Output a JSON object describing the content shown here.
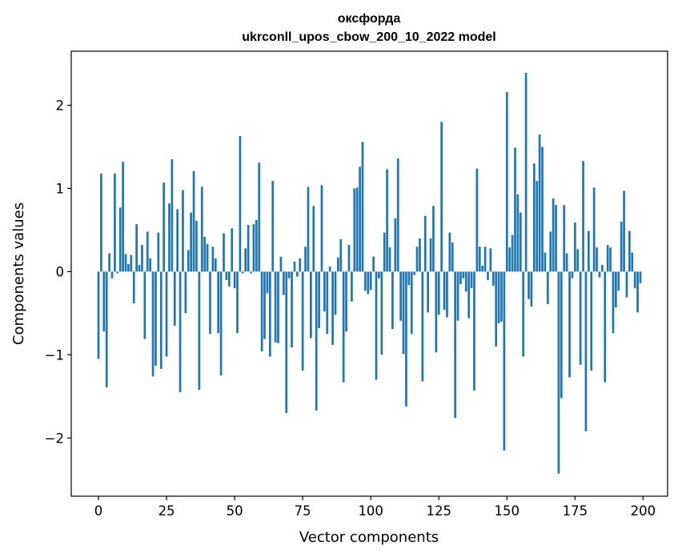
{
  "chart_data": {
    "type": "bar",
    "title_line1": "оксфорда",
    "title_line2": "ukrconll_upos_cbow_200_10_2022 model",
    "xlabel": "Vector components",
    "ylabel": "Components values",
    "xlim": [
      -10,
      209
    ],
    "ylim": [
      -2.7,
      2.65
    ],
    "xticks": [
      0,
      25,
      50,
      75,
      100,
      125,
      150,
      175,
      200
    ],
    "xtick_labels": [
      "0",
      "25",
      "50",
      "75",
      "100",
      "125",
      "150",
      "175",
      "200"
    ],
    "yticks": [
      -2,
      -1,
      0,
      1,
      2
    ],
    "ytick_labels": [
      "−2",
      "−1",
      "0",
      "1",
      "2"
    ],
    "grid": false,
    "bar_color": "#1f77b4",
    "values": [
      -1.05,
      1.18,
      -0.72,
      -1.39,
      0.22,
      -0.08,
      1.18,
      -0.02,
      0.77,
      1.32,
      0.21,
      0.09,
      0.2,
      -0.38,
      0.57,
      0.08,
      0.32,
      -0.81,
      0.48,
      0.16,
      -1.26,
      -1.13,
      0.47,
      -1.17,
      1.07,
      -1.02,
      0.82,
      1.35,
      -0.65,
      0.75,
      -1.45,
      0.98,
      -0.5,
      0.26,
      0.71,
      1.21,
      0.61,
      -1.42,
      1.02,
      0.42,
      0.33,
      -0.75,
      0.3,
      0.16,
      -0.74,
      -1.25,
      0.46,
      -0.1,
      -0.18,
      0.52,
      -0.2,
      -0.74,
      1.63,
      -0.02,
      0.28,
      0.56,
      -0.02,
      0.57,
      0.62,
      1.31,
      -0.96,
      -0.81,
      -0.26,
      -1.02,
      1.09,
      -0.85,
      -0.86,
      0.18,
      -0.28,
      -1.7,
      -0.08,
      -0.91,
      0.12,
      -0.06,
      0.16,
      -1.19,
      0.3,
      1.02,
      -0.8,
      0.79,
      -1.67,
      -0.68,
      1.04,
      -0.48,
      -0.75,
      0.06,
      -0.88,
      -0.52,
      0.17,
      0.39,
      -1.33,
      -0.72,
      0.32,
      -0.36,
      1.0,
      1.01,
      1.26,
      1.56,
      -0.23,
      -0.27,
      -0.22,
      0.18,
      -1.3,
      -0.08,
      -1.0,
      0.47,
      1.23,
      0.29,
      -0.69,
      0.64,
      1.36,
      -0.59,
      -0.99,
      -1.62,
      -0.16,
      -0.75,
      -0.04,
      0.3,
      0.4,
      -1.32,
      0.67,
      -0.49,
      0.4,
      0.79,
      -0.97,
      -0.52,
      1.8,
      -0.46,
      -0.55,
      0.47,
      0.35,
      -1.76,
      -0.59,
      -0.15,
      -0.08,
      -0.24,
      -0.56,
      -0.2,
      -1.43,
      1.24,
      0.3,
      0.07,
      0.3,
      -0.1,
      0.28,
      -0.17,
      -0.9,
      -0.62,
      -0.6,
      -2.15,
      2.16,
      0.29,
      0.44,
      1.49,
      0.93,
      0.71,
      -1.02,
      2.39,
      -0.33,
      -0.42,
      1.3,
      1.09,
      1.65,
      1.5,
      0.23,
      -0.39,
      0.48,
      0.88,
      0.8,
      -2.43,
      -1.52,
      0.8,
      0.22,
      -1.27,
      -0.08,
      0.59,
      0.27,
      -1.12,
      1.33,
      -1.92,
      0.49,
      -1.19,
      1.01,
      0.29,
      -0.07,
      0.08,
      -1.33,
      0.32,
      0.29,
      -0.74,
      -0.43,
      -0.23,
      0.6,
      0.97,
      -0.31,
      0.49,
      0.23,
      -0.2,
      -0.49,
      -0.14
    ]
  }
}
